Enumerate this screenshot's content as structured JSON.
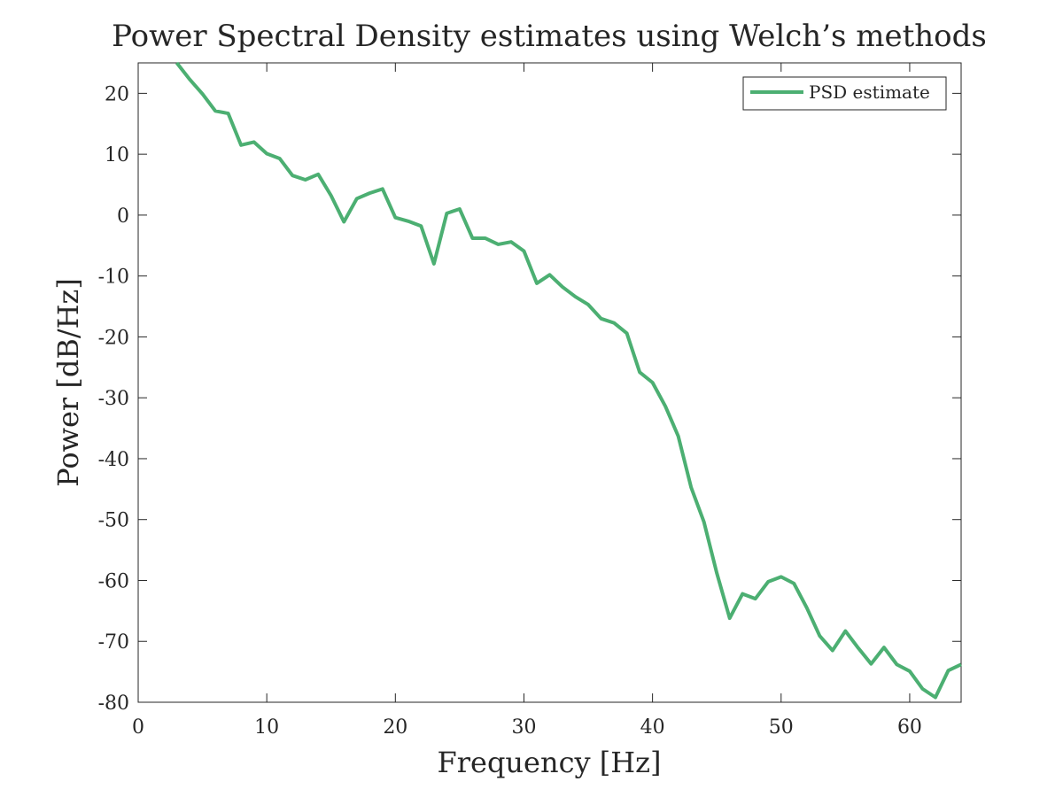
{
  "chart_data": {
    "type": "line",
    "title": "Power Spectral Density estimates using Welch’s methods",
    "xlabel": "Frequency [Hz]",
    "ylabel": "Power [dB/Hz]",
    "xlim": [
      0,
      64
    ],
    "ylim": [
      -80,
      25
    ],
    "x_ticks": [
      0,
      10,
      20,
      30,
      40,
      50,
      60
    ],
    "x_tick_labels": [
      "0",
      "10",
      "20",
      "30",
      "40",
      "50",
      "60"
    ],
    "y_ticks": [
      -80,
      -70,
      -60,
      -50,
      -40,
      -30,
      -20,
      -10,
      0,
      10,
      20
    ],
    "y_tick_labels": [
      "-80",
      "-70",
      "-60",
      "-50",
      "-40",
      "-30",
      "-20",
      "-10",
      "0",
      "10",
      "20"
    ],
    "grid": false,
    "legend": {
      "position": "top-right",
      "entries": [
        "PSD estimate"
      ]
    },
    "colors": {
      "line": "#4caf72",
      "axis": "#262626"
    },
    "series": [
      {
        "name": "PSD estimate",
        "x": [
          3,
          4,
          5,
          6,
          7,
          8,
          9,
          10,
          11,
          12,
          13,
          14,
          15,
          16,
          17,
          18,
          19,
          20,
          21,
          22,
          23,
          24,
          25,
          26,
          27,
          28,
          29,
          30,
          31,
          32,
          33,
          34,
          35,
          36,
          37,
          38,
          39,
          40,
          41,
          42,
          43,
          44,
          45,
          46,
          47,
          48,
          49,
          50,
          51,
          52,
          53,
          54,
          55,
          56,
          57,
          58,
          59,
          60,
          61,
          62,
          63,
          64
        ],
        "values": [
          25,
          22.3,
          19.9,
          17.1,
          16.7,
          11.5,
          12,
          10.1,
          9.3,
          6.5,
          5.8,
          6.7,
          3.2,
          -1.1,
          2.7,
          3.6,
          4.3,
          -0.4,
          -1,
          -1.8,
          -8,
          0.3,
          1,
          -3.8,
          -3.8,
          -4.8,
          -4.4,
          -5.9,
          -11.2,
          -9.8,
          -11.8,
          -13.4,
          -14.7,
          -17,
          -17.7,
          -19.4,
          -25.8,
          -27.5,
          -31.4,
          -36.3,
          -44.7,
          -50.4,
          -58.8,
          -66.2,
          -62.2,
          -63,
          -60.2,
          -59.4,
          -60.5,
          -64.5,
          -69.1,
          -71.5,
          -68.3,
          -71.1,
          -73.7,
          -71,
          -73.8,
          -74.9,
          -77.8,
          -79.2,
          -74.8,
          -73.8
        ]
      }
    ]
  }
}
